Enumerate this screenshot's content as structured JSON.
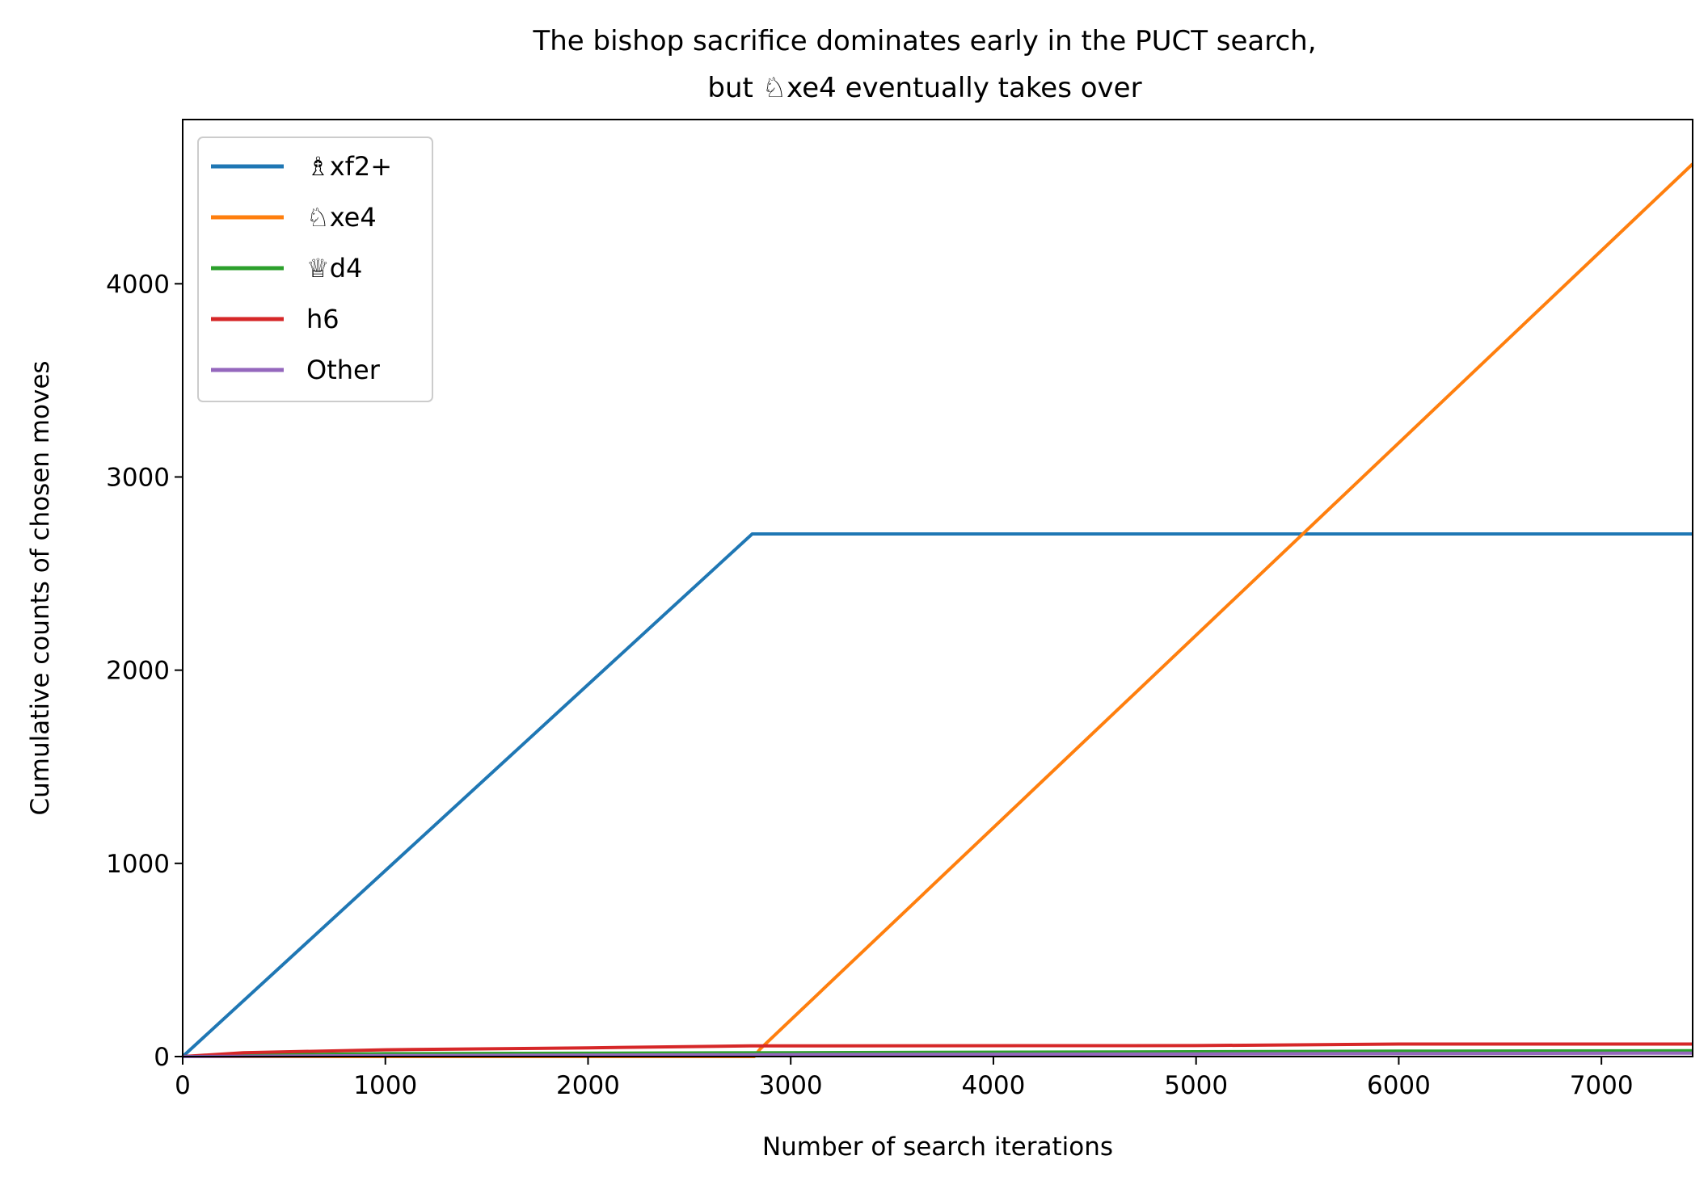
{
  "chart_data": {
    "type": "line",
    "title_lines": [
      "The bishop sacrifice dominates early in the PUCT search,",
      "but ♘xe4 eventually takes over"
    ],
    "xlabel": "Number of search iterations",
    "ylabel": "Cumulative counts of chosen moves",
    "xlim": [
      0,
      7450
    ],
    "ylim": [
      0,
      4850
    ],
    "xticks": [
      0,
      1000,
      2000,
      3000,
      4000,
      5000,
      6000,
      7000
    ],
    "yticks": [
      0,
      1000,
      2000,
      3000,
      4000
    ],
    "grid": false,
    "legend_position": "top-left",
    "series": [
      {
        "name": "♗xf2+",
        "color": "#1f77b4",
        "points": [
          [
            0,
            0
          ],
          [
            2810,
            2705
          ],
          [
            7450,
            2705
          ]
        ]
      },
      {
        "name": "♘xe4",
        "color": "#ff7f0e",
        "points": [
          [
            0,
            0
          ],
          [
            2820,
            0
          ],
          [
            2850,
            40
          ],
          [
            7450,
            4620
          ]
        ]
      },
      {
        "name": "♕d4",
        "color": "#2ca02c",
        "points": [
          [
            0,
            0
          ],
          [
            300,
            8
          ],
          [
            1000,
            15
          ],
          [
            3000,
            20
          ],
          [
            5000,
            25
          ],
          [
            6000,
            28
          ],
          [
            7450,
            30
          ]
        ]
      },
      {
        "name": "h6",
        "color": "#d62728",
        "points": [
          [
            0,
            0
          ],
          [
            300,
            20
          ],
          [
            1000,
            35
          ],
          [
            2000,
            45
          ],
          [
            2800,
            55
          ],
          [
            5000,
            57
          ],
          [
            6000,
            65
          ],
          [
            7450,
            65
          ]
        ]
      },
      {
        "name": "Other",
        "color": "#9467bd",
        "points": [
          [
            0,
            0
          ],
          [
            1000,
            5
          ],
          [
            3000,
            10
          ],
          [
            5000,
            14
          ],
          [
            7450,
            18
          ]
        ]
      }
    ]
  }
}
